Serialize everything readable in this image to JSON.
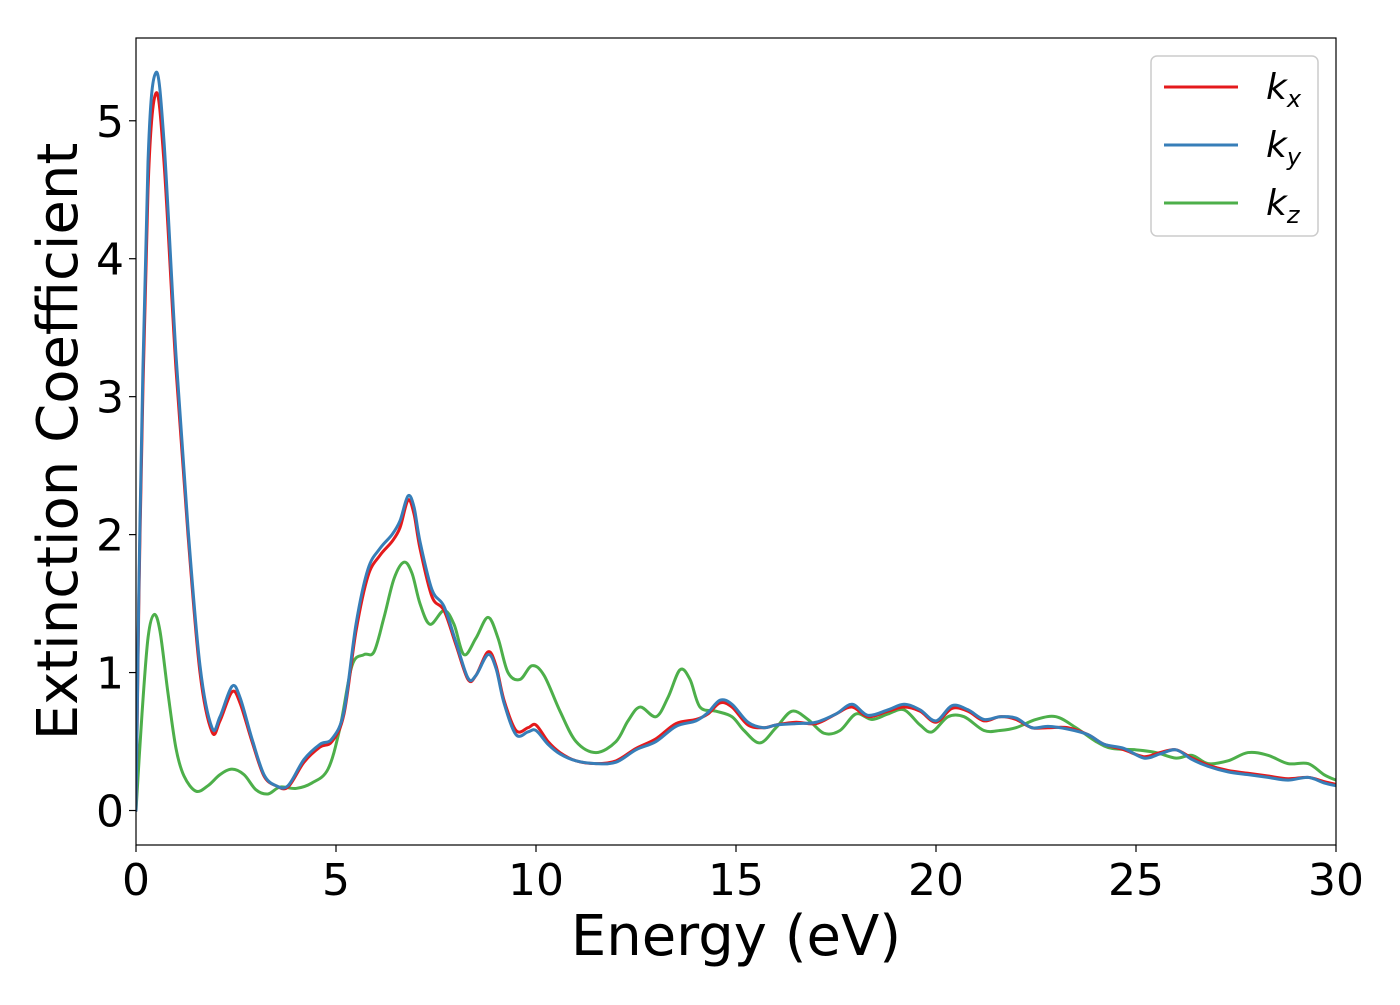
{
  "chart_data": {
    "type": "line",
    "title": "",
    "xlabel": "Energy (eV)",
    "ylabel": "Extinction Coefficient",
    "xlim": [
      0,
      30
    ],
    "ylim": [
      -0.25,
      5.6
    ],
    "xticks": [
      0,
      5,
      10,
      15,
      20,
      25,
      30
    ],
    "xtick_labels": [
      "0",
      "5",
      "10",
      "15",
      "20",
      "25",
      "30"
    ],
    "yticks": [
      0,
      1,
      2,
      3,
      4,
      5
    ],
    "ytick_labels": [
      "0",
      "1",
      "2",
      "3",
      "4",
      "5"
    ],
    "grid": false,
    "legend_position": "top-right",
    "series": [
      {
        "name": "k_x",
        "label_base": "k",
        "label_sub": "x",
        "color": "#e41a1c",
        "points": [
          [
            0,
            0
          ],
          [
            0.1,
            2.0
          ],
          [
            0.3,
            4.5
          ],
          [
            0.5,
            5.2
          ],
          [
            0.7,
            4.7
          ],
          [
            1.0,
            3.2
          ],
          [
            1.3,
            2.0
          ],
          [
            1.6,
            1.0
          ],
          [
            1.9,
            0.57
          ],
          [
            2.1,
            0.65
          ],
          [
            2.4,
            0.86
          ],
          [
            2.6,
            0.78
          ],
          [
            2.9,
            0.5
          ],
          [
            3.2,
            0.25
          ],
          [
            3.5,
            0.18
          ],
          [
            3.8,
            0.17
          ],
          [
            4.2,
            0.35
          ],
          [
            4.6,
            0.46
          ],
          [
            4.9,
            0.5
          ],
          [
            5.2,
            0.7
          ],
          [
            5.5,
            1.3
          ],
          [
            5.8,
            1.7
          ],
          [
            6.1,
            1.85
          ],
          [
            6.4,
            1.95
          ],
          [
            6.6,
            2.05
          ],
          [
            6.8,
            2.25
          ],
          [
            6.95,
            2.15
          ],
          [
            7.1,
            1.9
          ],
          [
            7.4,
            1.55
          ],
          [
            7.7,
            1.45
          ],
          [
            8.0,
            1.2
          ],
          [
            8.3,
            0.95
          ],
          [
            8.5,
            0.98
          ],
          [
            8.8,
            1.15
          ],
          [
            9.0,
            1.05
          ],
          [
            9.2,
            0.8
          ],
          [
            9.5,
            0.58
          ],
          [
            9.8,
            0.6
          ],
          [
            10.0,
            0.62
          ],
          [
            10.3,
            0.5
          ],
          [
            10.6,
            0.42
          ],
          [
            11.0,
            0.36
          ],
          [
            11.5,
            0.34
          ],
          [
            12.0,
            0.36
          ],
          [
            12.5,
            0.45
          ],
          [
            13.0,
            0.52
          ],
          [
            13.5,
            0.63
          ],
          [
            14.0,
            0.66
          ],
          [
            14.3,
            0.7
          ],
          [
            14.6,
            0.78
          ],
          [
            14.9,
            0.75
          ],
          [
            15.3,
            0.62
          ],
          [
            15.7,
            0.6
          ],
          [
            16.0,
            0.62
          ],
          [
            16.5,
            0.64
          ],
          [
            17.0,
            0.63
          ],
          [
            17.5,
            0.7
          ],
          [
            17.9,
            0.75
          ],
          [
            18.3,
            0.68
          ],
          [
            18.8,
            0.72
          ],
          [
            19.2,
            0.75
          ],
          [
            19.6,
            0.72
          ],
          [
            20.0,
            0.64
          ],
          [
            20.4,
            0.74
          ],
          [
            20.8,
            0.72
          ],
          [
            21.2,
            0.65
          ],
          [
            21.6,
            0.68
          ],
          [
            22.0,
            0.66
          ],
          [
            22.4,
            0.6
          ],
          [
            22.8,
            0.6
          ],
          [
            23.3,
            0.6
          ],
          [
            23.8,
            0.55
          ],
          [
            24.2,
            0.48
          ],
          [
            24.7,
            0.44
          ],
          [
            25.2,
            0.39
          ],
          [
            25.6,
            0.42
          ],
          [
            26.0,
            0.44
          ],
          [
            26.4,
            0.38
          ],
          [
            26.8,
            0.33
          ],
          [
            27.3,
            0.29
          ],
          [
            27.8,
            0.27
          ],
          [
            28.3,
            0.25
          ],
          [
            28.8,
            0.23
          ],
          [
            29.3,
            0.24
          ],
          [
            29.7,
            0.21
          ],
          [
            30.0,
            0.19
          ]
        ]
      },
      {
        "name": "k_y",
        "label_base": "k",
        "label_sub": "y",
        "color": "#377eb8",
        "points": [
          [
            0,
            0
          ],
          [
            0.1,
            2.1
          ],
          [
            0.3,
            4.7
          ],
          [
            0.5,
            5.35
          ],
          [
            0.7,
            4.85
          ],
          [
            1.0,
            3.3
          ],
          [
            1.3,
            2.05
          ],
          [
            1.6,
            1.05
          ],
          [
            1.9,
            0.6
          ],
          [
            2.1,
            0.68
          ],
          [
            2.4,
            0.9
          ],
          [
            2.6,
            0.82
          ],
          [
            2.9,
            0.52
          ],
          [
            3.2,
            0.26
          ],
          [
            3.5,
            0.18
          ],
          [
            3.8,
            0.18
          ],
          [
            4.2,
            0.37
          ],
          [
            4.6,
            0.48
          ],
          [
            4.9,
            0.52
          ],
          [
            5.2,
            0.72
          ],
          [
            5.5,
            1.35
          ],
          [
            5.8,
            1.75
          ],
          [
            6.1,
            1.9
          ],
          [
            6.4,
            2.0
          ],
          [
            6.6,
            2.1
          ],
          [
            6.8,
            2.28
          ],
          [
            6.95,
            2.2
          ],
          [
            7.1,
            1.95
          ],
          [
            7.4,
            1.6
          ],
          [
            7.7,
            1.48
          ],
          [
            8.0,
            1.22
          ],
          [
            8.3,
            0.96
          ],
          [
            8.5,
            0.98
          ],
          [
            8.8,
            1.13
          ],
          [
            9.0,
            1.03
          ],
          [
            9.2,
            0.78
          ],
          [
            9.5,
            0.55
          ],
          [
            9.8,
            0.57
          ],
          [
            10.0,
            0.58
          ],
          [
            10.3,
            0.48
          ],
          [
            10.6,
            0.41
          ],
          [
            11.0,
            0.36
          ],
          [
            11.5,
            0.34
          ],
          [
            12.0,
            0.35
          ],
          [
            12.5,
            0.44
          ],
          [
            13.0,
            0.5
          ],
          [
            13.5,
            0.61
          ],
          [
            14.0,
            0.65
          ],
          [
            14.3,
            0.71
          ],
          [
            14.6,
            0.8
          ],
          [
            14.9,
            0.77
          ],
          [
            15.3,
            0.64
          ],
          [
            15.7,
            0.6
          ],
          [
            16.0,
            0.62
          ],
          [
            16.5,
            0.63
          ],
          [
            17.0,
            0.64
          ],
          [
            17.5,
            0.7
          ],
          [
            17.9,
            0.77
          ],
          [
            18.3,
            0.69
          ],
          [
            18.8,
            0.73
          ],
          [
            19.2,
            0.77
          ],
          [
            19.6,
            0.73
          ],
          [
            20.0,
            0.65
          ],
          [
            20.4,
            0.76
          ],
          [
            20.8,
            0.73
          ],
          [
            21.2,
            0.66
          ],
          [
            21.6,
            0.68
          ],
          [
            22.0,
            0.67
          ],
          [
            22.4,
            0.6
          ],
          [
            22.8,
            0.61
          ],
          [
            23.3,
            0.59
          ],
          [
            23.8,
            0.55
          ],
          [
            24.2,
            0.48
          ],
          [
            24.7,
            0.45
          ],
          [
            25.2,
            0.38
          ],
          [
            25.6,
            0.41
          ],
          [
            26.0,
            0.44
          ],
          [
            26.4,
            0.37
          ],
          [
            26.8,
            0.32
          ],
          [
            27.3,
            0.28
          ],
          [
            27.8,
            0.26
          ],
          [
            28.3,
            0.24
          ],
          [
            28.8,
            0.22
          ],
          [
            29.3,
            0.24
          ],
          [
            29.7,
            0.2
          ],
          [
            30.0,
            0.18
          ]
        ]
      },
      {
        "name": "k_z",
        "label_base": "k",
        "label_sub": "z",
        "color": "#4daf4a",
        "points": [
          [
            0,
            0
          ],
          [
            0.15,
            0.7
          ],
          [
            0.3,
            1.25
          ],
          [
            0.45,
            1.42
          ],
          [
            0.6,
            1.3
          ],
          [
            0.8,
            0.85
          ],
          [
            1.0,
            0.45
          ],
          [
            1.2,
            0.25
          ],
          [
            1.5,
            0.14
          ],
          [
            1.8,
            0.18
          ],
          [
            2.1,
            0.26
          ],
          [
            2.4,
            0.3
          ],
          [
            2.7,
            0.26
          ],
          [
            3.0,
            0.15
          ],
          [
            3.3,
            0.12
          ],
          [
            3.6,
            0.17
          ],
          [
            4.0,
            0.16
          ],
          [
            4.4,
            0.2
          ],
          [
            4.8,
            0.3
          ],
          [
            5.1,
            0.6
          ],
          [
            5.4,
            1.05
          ],
          [
            5.7,
            1.13
          ],
          [
            5.95,
            1.15
          ],
          [
            6.2,
            1.4
          ],
          [
            6.45,
            1.68
          ],
          [
            6.7,
            1.8
          ],
          [
            6.9,
            1.72
          ],
          [
            7.1,
            1.5
          ],
          [
            7.35,
            1.35
          ],
          [
            7.7,
            1.45
          ],
          [
            7.95,
            1.35
          ],
          [
            8.2,
            1.13
          ],
          [
            8.5,
            1.25
          ],
          [
            8.8,
            1.4
          ],
          [
            9.05,
            1.25
          ],
          [
            9.3,
            1.0
          ],
          [
            9.6,
            0.95
          ],
          [
            9.9,
            1.05
          ],
          [
            10.2,
            0.98
          ],
          [
            10.6,
            0.72
          ],
          [
            11.0,
            0.5
          ],
          [
            11.5,
            0.42
          ],
          [
            12.0,
            0.5
          ],
          [
            12.3,
            0.65
          ],
          [
            12.6,
            0.75
          ],
          [
            13.0,
            0.68
          ],
          [
            13.3,
            0.82
          ],
          [
            13.6,
            1.02
          ],
          [
            13.85,
            0.95
          ],
          [
            14.1,
            0.75
          ],
          [
            14.5,
            0.72
          ],
          [
            14.9,
            0.68
          ],
          [
            15.2,
            0.58
          ],
          [
            15.6,
            0.49
          ],
          [
            16.0,
            0.6
          ],
          [
            16.4,
            0.72
          ],
          [
            16.8,
            0.66
          ],
          [
            17.2,
            0.56
          ],
          [
            17.6,
            0.58
          ],
          [
            18.0,
            0.7
          ],
          [
            18.4,
            0.66
          ],
          [
            18.8,
            0.7
          ],
          [
            19.2,
            0.73
          ],
          [
            19.6,
            0.62
          ],
          [
            19.9,
            0.57
          ],
          [
            20.3,
            0.68
          ],
          [
            20.7,
            0.68
          ],
          [
            21.2,
            0.58
          ],
          [
            21.6,
            0.58
          ],
          [
            22.0,
            0.6
          ],
          [
            22.5,
            0.66
          ],
          [
            23.0,
            0.68
          ],
          [
            23.5,
            0.6
          ],
          [
            24.0,
            0.5
          ],
          [
            24.4,
            0.45
          ],
          [
            25.0,
            0.44
          ],
          [
            25.5,
            0.42
          ],
          [
            26.0,
            0.38
          ],
          [
            26.4,
            0.4
          ],
          [
            26.8,
            0.34
          ],
          [
            27.3,
            0.36
          ],
          [
            27.8,
            0.42
          ],
          [
            28.3,
            0.4
          ],
          [
            28.8,
            0.34
          ],
          [
            29.3,
            0.34
          ],
          [
            29.7,
            0.26
          ],
          [
            30.0,
            0.22
          ]
        ]
      }
    ]
  }
}
